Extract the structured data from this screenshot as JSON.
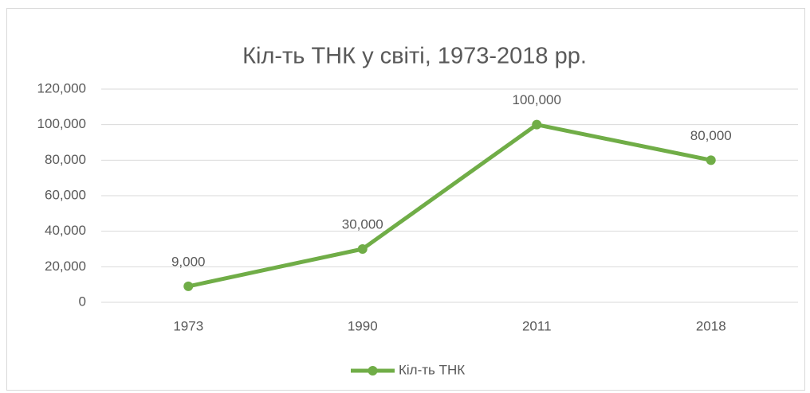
{
  "chart_data": {
    "type": "line",
    "title": "Кіл-ть ТНК у світі, 1973-2018 рр.",
    "categories": [
      "1973",
      "1990",
      "2011",
      "2018"
    ],
    "series": [
      {
        "name": "Кіл-ть ТНК",
        "color": "#70ad47",
        "values": [
          9000,
          30000,
          100000,
          80000
        ],
        "value_labels": [
          "9,000",
          "30,000",
          "100,000",
          "80,000"
        ]
      }
    ],
    "ylim": [
      0,
      120000
    ],
    "yticks": [
      0,
      {
        "value": 20000,
        "label": "20,000"
      },
      {
        "value": 40000,
        "label": "40,000"
      },
      {
        "value": 60000,
        "label": "60,000"
      },
      {
        "value": 80000,
        "label": "80,000"
      },
      {
        "value": 100000,
        "label": "100,000"
      },
      {
        "value": 120000,
        "label": "120,000"
      }
    ],
    "grid": true,
    "legend": "bottom"
  }
}
